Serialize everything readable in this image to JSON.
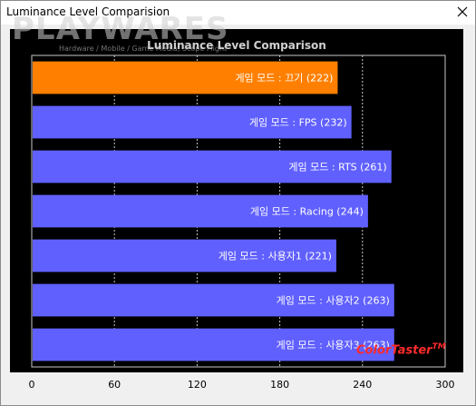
{
  "window": {
    "title": "Luminance Level Comparision"
  },
  "watermark": {
    "logo": "PLAYWARES",
    "tagline": "Hardware / Mobile / Game Media, Scope Flight"
  },
  "brand": {
    "name": "ColorTaster",
    "mark": "TM"
  },
  "colors": {
    "highlight": "#ff8000",
    "bar": "#6060ff",
    "background": "#000000",
    "grid": "#c8c8c8"
  },
  "chart_data": {
    "type": "bar",
    "orientation": "horizontal",
    "title": "Luminance Level Comparison",
    "categories": [
      "게임 모드 : 끄기",
      "게임 모드 : FPS",
      "게임 모드 : RTS",
      "게임 모드 : Racing",
      "게임 모드 : 사용자1",
      "게임 모드 : 사용자2",
      "게임 모드 : 사용자3"
    ],
    "values": [
      222,
      232,
      261,
      244,
      221,
      263,
      263
    ],
    "bar_labels": [
      "게임 모드 : 끄기 (222)",
      "게임 모드 : FPS (232)",
      "게임 모드 : RTS (261)",
      "게임 모드 : Racing (244)",
      "게임 모드 : 사용자1 (221)",
      "게임 모드 : 사용자2 (263)",
      "게임 모드 : 사용자3 (263)"
    ],
    "highlight_index": 0,
    "xlim": [
      0,
      300
    ],
    "xticks": [
      "0",
      "60",
      "120",
      "180",
      "240",
      "300"
    ],
    "grid": "vertical dashed"
  }
}
